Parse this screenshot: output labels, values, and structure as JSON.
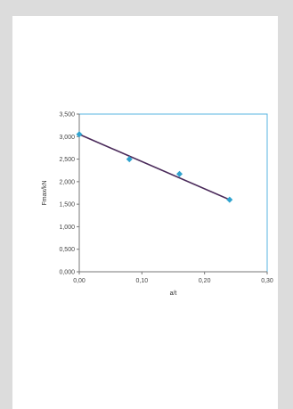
{
  "chart_data": {
    "type": "scatter",
    "title": "",
    "xlabel": "a/t",
    "ylabel": "Fmax/kN",
    "xlim": [
      0,
      0.3
    ],
    "ylim": [
      0,
      3.5
    ],
    "x_ticks": [
      "0,00",
      "0,10",
      "0,20",
      "0,30"
    ],
    "y_ticks": [
      "0,000",
      "0,500",
      "1,000",
      "1,500",
      "2,000",
      "2,500",
      "3,000",
      "3,500"
    ],
    "series": [
      {
        "name": "",
        "x": [
          0.0,
          0.08,
          0.16,
          0.24
        ],
        "y": [
          3.05,
          2.5,
          2.17,
          1.6
        ],
        "color": "#2fa3cf"
      }
    ],
    "trendline": {
      "x": [
        0.0,
        0.24
      ],
      "y": [
        3.05,
        1.6
      ],
      "color": "#4a2a5a"
    },
    "plot_border_color": "#5ab4e0"
  }
}
